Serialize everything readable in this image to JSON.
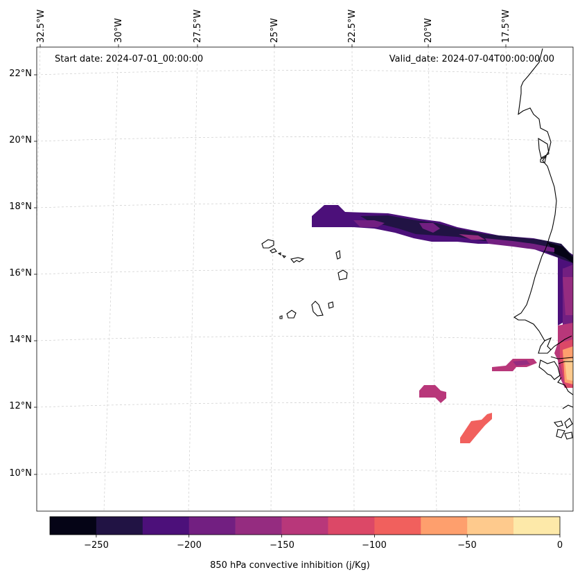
{
  "map": {
    "start_date": "Start date: 2024-07-01_00:00:00",
    "valid_date": "Valid_date: 2024-07-04T00:00:00.00",
    "lat_labels": [
      "22°N",
      "20°N",
      "18°N",
      "16°N",
      "14°N",
      "12°N",
      "10°N"
    ],
    "lon_labels": [
      "32.5°W",
      "30°W",
      "27.5°W",
      "25°W",
      "22.5°W",
      "20°W",
      "17.5°W"
    ],
    "gridlines": true,
    "coastline_color": "#000000"
  },
  "colorbar": {
    "label": "850 hPa convective inhibition (j/Kg)",
    "tick_labels": [
      "−250",
      "−200",
      "−150",
      "−100",
      "−50",
      "0"
    ],
    "levels": [
      -275,
      -250,
      -225,
      -200,
      -175,
      -150,
      -125,
      -100,
      -75,
      -50,
      -25,
      0
    ],
    "colors": [
      "#050416",
      "#211344",
      "#4c107a",
      "#721f81",
      "#952c80",
      "#b8377a",
      "#dc4867",
      "#f1605d",
      "#fe9f6d",
      "#feca8d",
      "#fde9a9"
    ]
  }
}
